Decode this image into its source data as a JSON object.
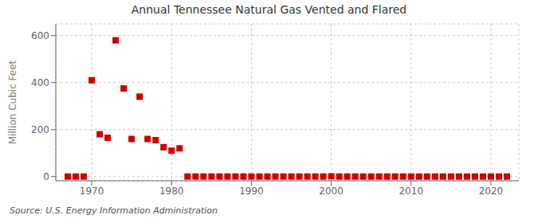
{
  "chart_data": {
    "type": "scatter",
    "title": "Annual Tennessee Natural Gas Vented and Flared",
    "ylabel": "Million Cubic Feet",
    "annotations": [
      "Source: U.S. Energy Information Administration"
    ],
    "x": [
      1967,
      1968,
      1969,
      1970,
      1971,
      1972,
      1973,
      1974,
      1975,
      1976,
      1977,
      1978,
      1979,
      1980,
      1981,
      1982,
      1983,
      1984,
      1985,
      1986,
      1987,
      1988,
      1989,
      1990,
      1991,
      1992,
      1993,
      1994,
      1995,
      1996,
      1997,
      1998,
      1999,
      2000,
      2001,
      2002,
      2003,
      2004,
      2005,
      2006,
      2007,
      2008,
      2009,
      2010,
      2011,
      2012,
      2013,
      2014,
      2015,
      2016,
      2017,
      2018,
      2019,
      2020,
      2021,
      2022
    ],
    "values": [
      0,
      0,
      0,
      410,
      180,
      165,
      580,
      375,
      160,
      340,
      160,
      155,
      125,
      110,
      120,
      0,
      0,
      0,
      0,
      0,
      0,
      0,
      0,
      0,
      0,
      0,
      0,
      0,
      0,
      0,
      0,
      0,
      0,
      1,
      0,
      0,
      0,
      0,
      0,
      0,
      0,
      0,
      0,
      0,
      0,
      0,
      0,
      0,
      0,
      0,
      0,
      0,
      0,
      0,
      0,
      0
    ],
    "color": "#cc0000",
    "marker": "square",
    "xlim": [
      1965.5,
      2023.5
    ],
    "xticks": [
      1970,
      1980,
      1990,
      2000,
      2010,
      2020
    ],
    "ylim": [
      -18,
      650
    ],
    "yticks": [
      0,
      200,
      400,
      600
    ],
    "grid": true
  }
}
